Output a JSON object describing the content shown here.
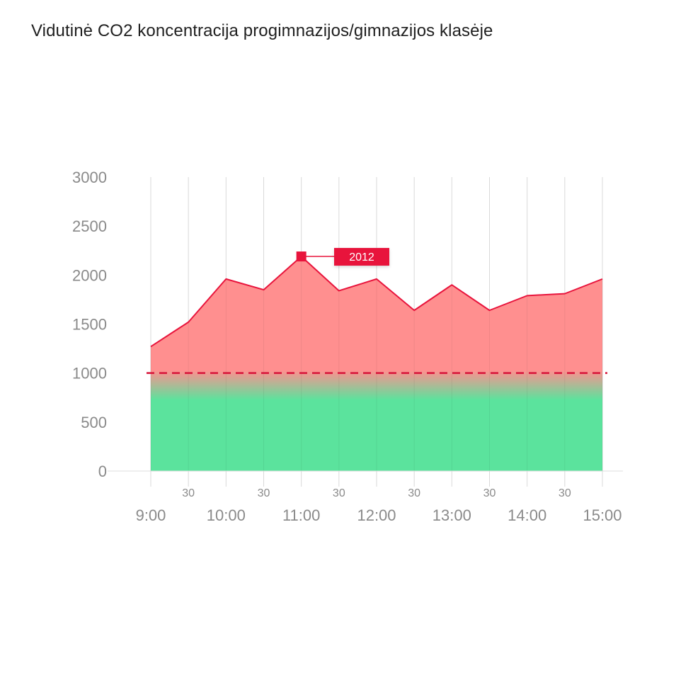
{
  "title": "Vidutinė CO2 koncentracija progimnazijos/gimnazijos klasėje",
  "chart_data": {
    "type": "area",
    "title": "Vidutinė CO2 koncentracija progimnazijos/gimnazijos klasėje",
    "xlabel": "",
    "ylabel": "",
    "x": [
      "9:00",
      "9:30",
      "10:00",
      "10:30",
      "11:00",
      "11:30",
      "12:00",
      "12:30",
      "13:00",
      "13:30",
      "14:00",
      "14:30",
      "15:00"
    ],
    "x_tick_labels": [
      "9:00",
      "30",
      "10:00",
      "30",
      "11:00",
      "30",
      "12:00",
      "30",
      "13:00",
      "30",
      "14:00",
      "30",
      "15:00"
    ],
    "values": [
      1270,
      1520,
      1960,
      1850,
      2190,
      1840,
      1960,
      1640,
      1900,
      1640,
      1790,
      1810,
      1960
    ],
    "ylim": [
      0,
      3000
    ],
    "y_ticks": [
      0,
      500,
      1000,
      1500,
      2000,
      2500,
      3000
    ],
    "threshold": 1000,
    "highlight": {
      "index": 4,
      "label": "2012"
    },
    "grid": "vertical",
    "colors": {
      "above": "#ff8f8f",
      "below": "#5be39d",
      "line": "#e8143c",
      "threshold": "#d8143a",
      "callout": "#e8143c",
      "grid": "#d9d9d9"
    }
  }
}
